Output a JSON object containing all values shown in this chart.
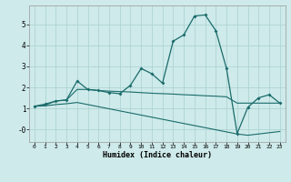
{
  "xlabel": "Humidex (Indice chaleur)",
  "background_color": "#ceeaea",
  "grid_color": "#afd4d4",
  "line_color": "#1a6b6b",
  "x_ticks": [
    0,
    1,
    2,
    3,
    4,
    5,
    6,
    7,
    8,
    9,
    10,
    11,
    12,
    13,
    14,
    15,
    16,
    17,
    18,
    19,
    20,
    21,
    22,
    23
  ],
  "ylim": [
    -0.6,
    5.9
  ],
  "xlim": [
    -0.5,
    23.5
  ],
  "yticks": [
    0,
    1,
    2,
    3,
    4,
    5
  ],
  "ytick_labels": [
    "-0",
    "1",
    "2",
    "3",
    "4",
    "5"
  ],
  "series1": [
    1.1,
    1.2,
    1.35,
    1.4,
    2.3,
    1.9,
    1.85,
    1.75,
    1.7,
    2.1,
    2.9,
    2.65,
    2.2,
    4.2,
    4.5,
    5.4,
    5.45,
    4.7,
    2.9,
    -0.2,
    1.05,
    1.5,
    1.65,
    1.25
  ],
  "series2": [
    1.1,
    1.15,
    1.35,
    1.4,
    1.9,
    1.9,
    1.85,
    1.82,
    1.8,
    1.78,
    1.75,
    1.72,
    1.7,
    1.68,
    1.65,
    1.63,
    1.6,
    1.58,
    1.55,
    1.25,
    1.25,
    1.25,
    1.25,
    1.25
  ],
  "series3": [
    1.1,
    1.12,
    1.18,
    1.22,
    1.28,
    1.18,
    1.08,
    0.98,
    0.88,
    0.78,
    0.68,
    0.58,
    0.48,
    0.38,
    0.28,
    0.18,
    0.08,
    -0.02,
    -0.12,
    -0.22,
    -0.28,
    -0.22,
    -0.16,
    -0.1
  ]
}
